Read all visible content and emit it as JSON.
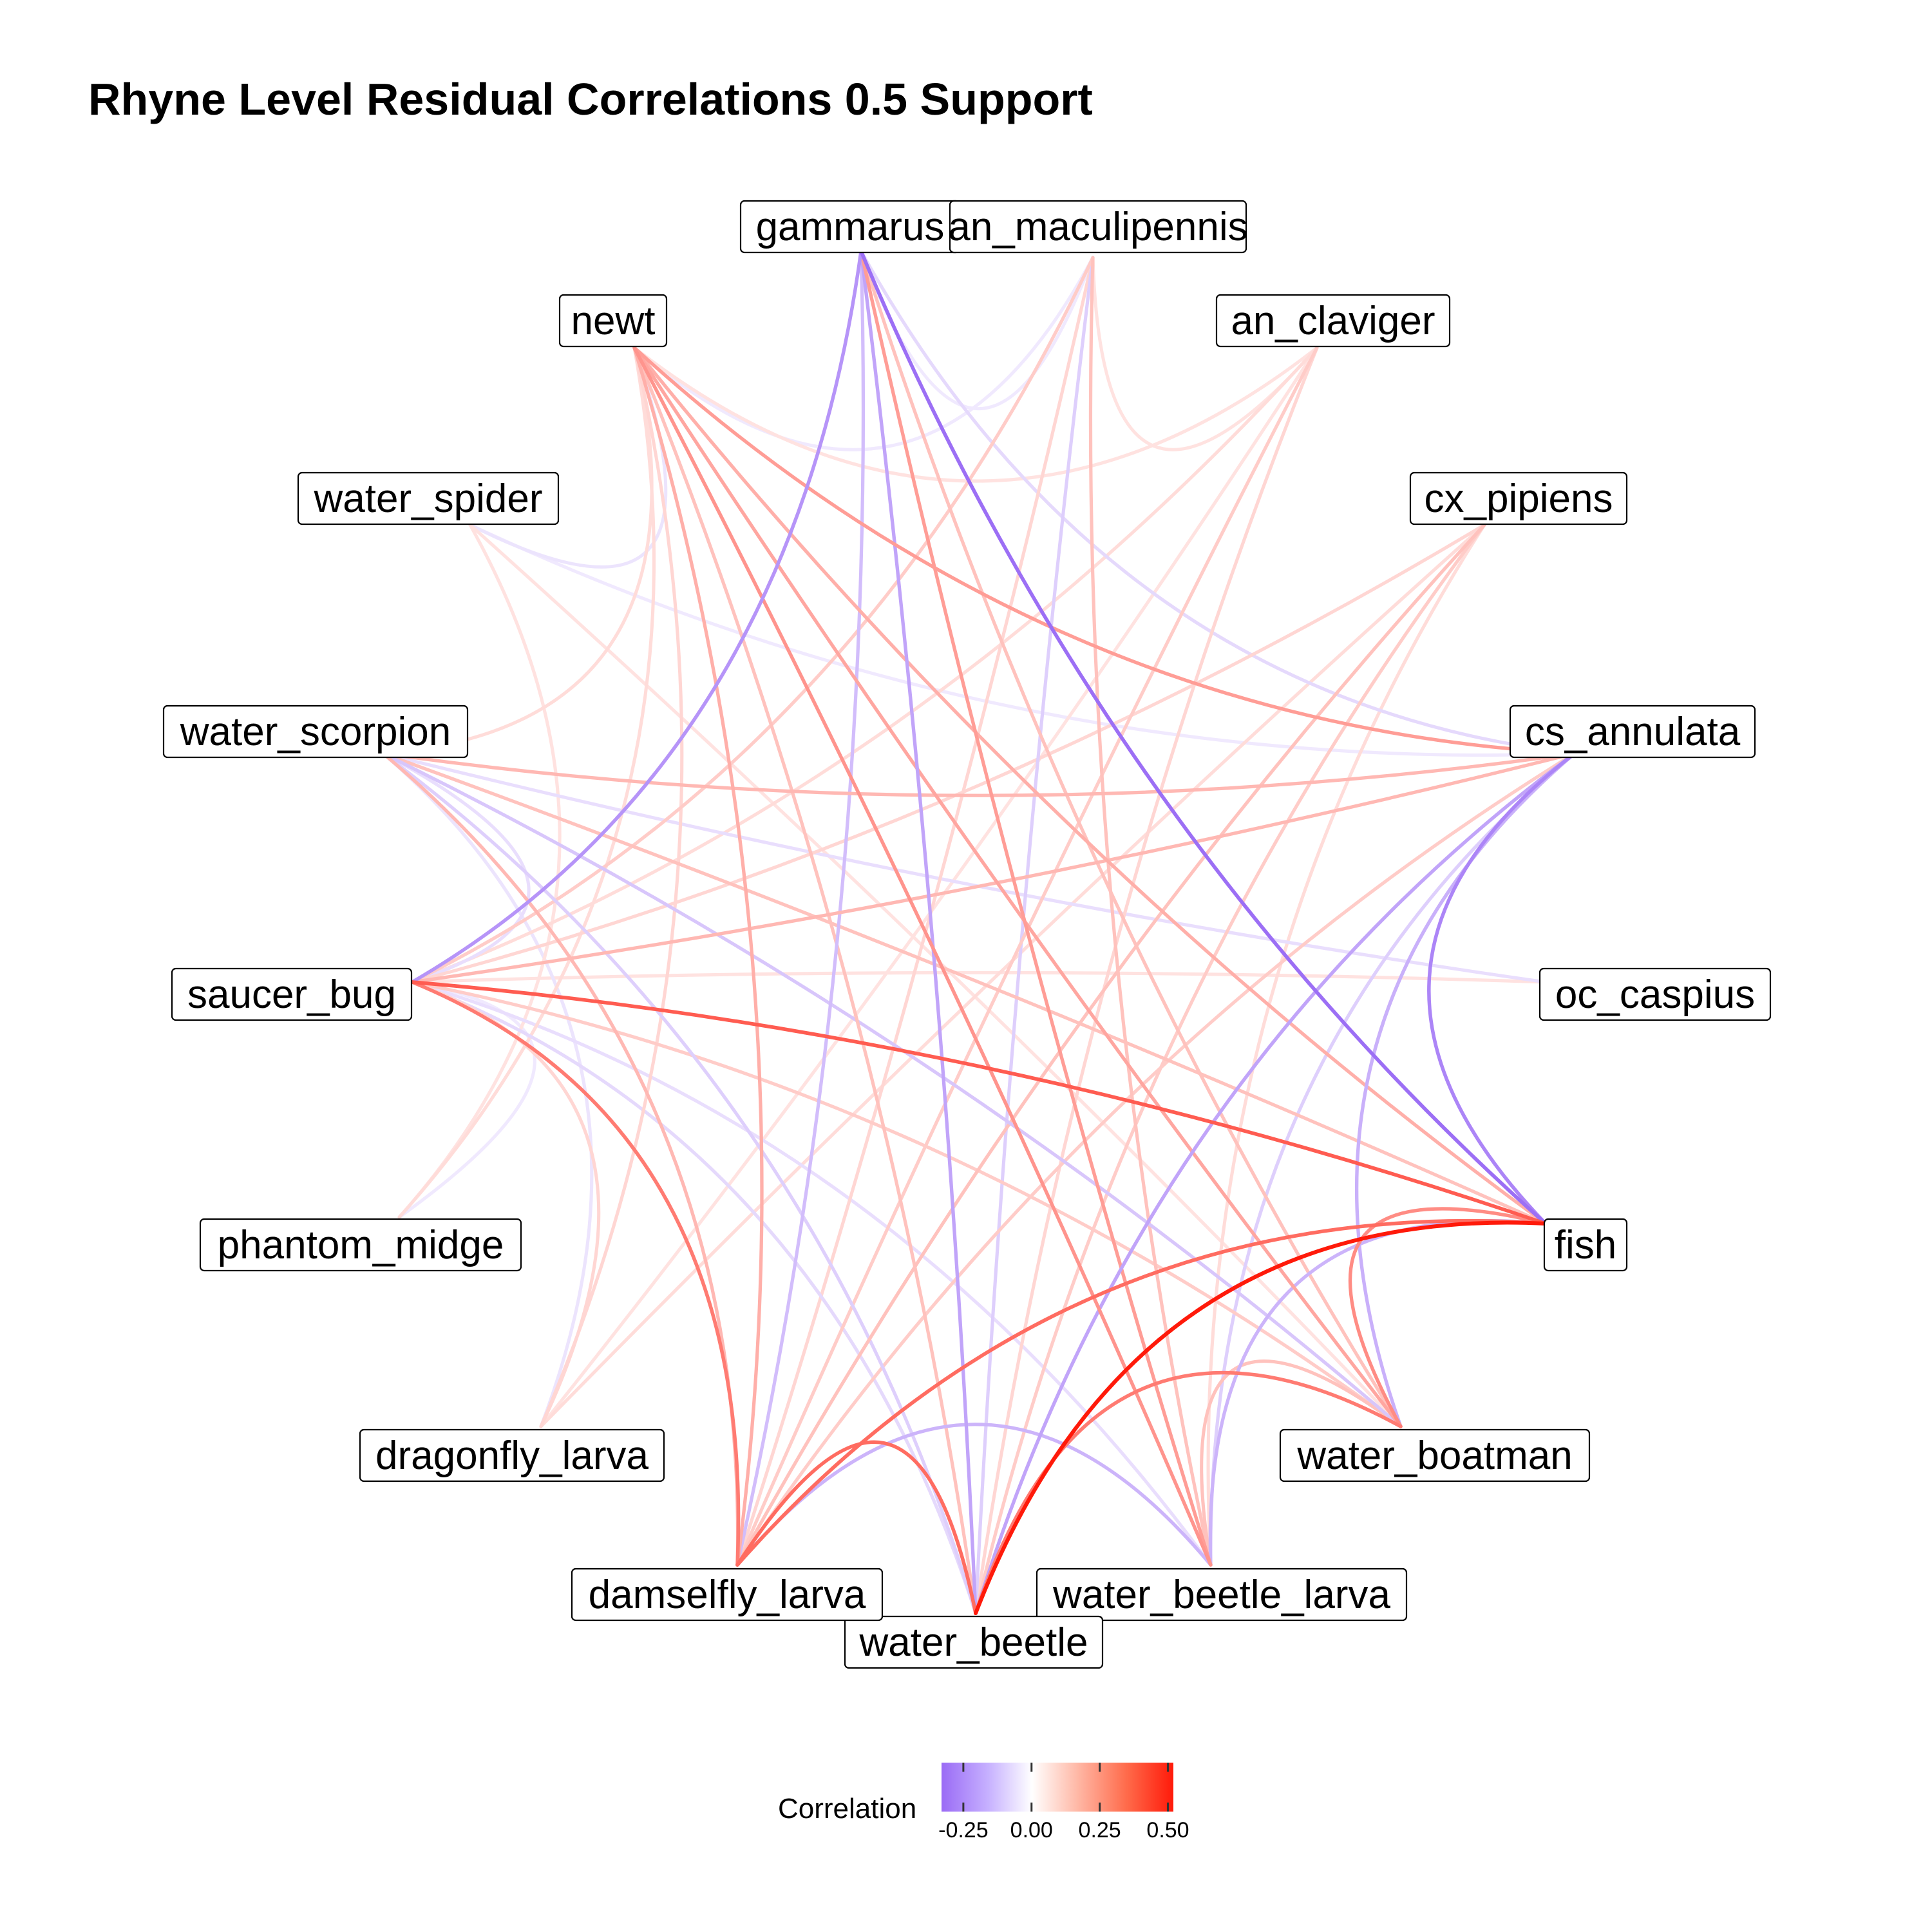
{
  "chart_data": {
    "type": "network",
    "title": "Rhyne Level Residual Correlations 0.5 Support",
    "legend": {
      "title": "Correlation",
      "ticks": [
        {
          "value": -0.25,
          "label": "-0.25"
        },
        {
          "value": 0.0,
          "label": "0.00"
        },
        {
          "value": 0.25,
          "label": "0.25"
        },
        {
          "value": 0.5,
          "label": "0.50"
        }
      ],
      "range": [
        -0.33,
        0.52
      ],
      "placement": "bottom",
      "colors": {
        "negative": "#9A6BF5",
        "zero": "#FFFFFF",
        "positive": "#FF1A0A"
      }
    },
    "nodes": [
      "gammarus",
      "an_maculipennis",
      "an_claviger",
      "cx_pipiens",
      "cs_annulata",
      "oc_caspius",
      "fish",
      "water_boatman",
      "water_beetle_larva",
      "water_beetle",
      "damselfly_larva",
      "dragonfly_larva",
      "phantom_midge",
      "saucer_bug",
      "water_scorpion",
      "water_spider",
      "newt"
    ],
    "edges": [
      {
        "source": "gammarus",
        "target": "fish",
        "value": -0.32
      },
      {
        "source": "gammarus",
        "target": "saucer_bug",
        "value": -0.22
      },
      {
        "source": "gammarus",
        "target": "water_beetle",
        "value": -0.18
      },
      {
        "source": "gammarus",
        "target": "damselfly_larva",
        "value": -0.12
      },
      {
        "source": "gammarus",
        "target": "water_beetle_larva",
        "value": 0.18
      },
      {
        "source": "gammarus",
        "target": "cs_annulata",
        "value": -0.06
      },
      {
        "source": "gammarus",
        "target": "water_boatman",
        "value": 0.1
      },
      {
        "source": "gammarus",
        "target": "an_maculipennis",
        "value": -0.03
      },
      {
        "source": "an_maculipennis",
        "target": "water_beetle",
        "value": -0.08
      },
      {
        "source": "an_maculipennis",
        "target": "water_beetle_larva",
        "value": 0.1
      },
      {
        "source": "an_maculipennis",
        "target": "saucer_bug",
        "value": 0.08
      },
      {
        "source": "an_maculipennis",
        "target": "newt",
        "value": -0.03
      },
      {
        "source": "an_maculipennis",
        "target": "damselfly_larva",
        "value": 0.06
      },
      {
        "source": "an_maculipennis",
        "target": "an_claviger",
        "value": 0.04
      },
      {
        "source": "an_claviger",
        "target": "damselfly_larva",
        "value": 0.08
      },
      {
        "source": "an_claviger",
        "target": "water_beetle",
        "value": 0.06
      },
      {
        "source": "an_claviger",
        "target": "saucer_bug",
        "value": 0.05
      },
      {
        "source": "an_claviger",
        "target": "dragonfly_larva",
        "value": 0.04
      },
      {
        "source": "an_claviger",
        "target": "newt",
        "value": 0.04
      },
      {
        "source": "cx_pipiens",
        "target": "damselfly_larva",
        "value": 0.1
      },
      {
        "source": "cx_pipiens",
        "target": "water_beetle",
        "value": 0.08
      },
      {
        "source": "cx_pipiens",
        "target": "saucer_bug",
        "value": 0.06
      },
      {
        "source": "cx_pipiens",
        "target": "water_beetle_larva",
        "value": 0.05
      },
      {
        "source": "cx_pipiens",
        "target": "dragonfly_larva",
        "value": 0.05
      },
      {
        "source": "cs_annulata",
        "target": "fish",
        "value": -0.26
      },
      {
        "source": "cs_annulata",
        "target": "water_beetle",
        "value": -0.18
      },
      {
        "source": "cs_annulata",
        "target": "saucer_bug",
        "value": 0.12
      },
      {
        "source": "cs_annulata",
        "target": "newt",
        "value": 0.18
      },
      {
        "source": "cs_annulata",
        "target": "water_scorpion",
        "value": 0.12
      },
      {
        "source": "cs_annulata",
        "target": "water_boatman",
        "value": -0.15
      },
      {
        "source": "cs_annulata",
        "target": "damselfly_larva",
        "value": 0.08
      },
      {
        "source": "cs_annulata",
        "target": "water_beetle_larva",
        "value": -0.08
      },
      {
        "source": "oc_caspius",
        "target": "water_scorpion",
        "value": -0.05
      },
      {
        "source": "oc_caspius",
        "target": "saucer_bug",
        "value": 0.04
      },
      {
        "source": "fish",
        "target": "saucer_bug",
        "value": 0.34
      },
      {
        "source": "fish",
        "target": "water_beetle",
        "value": 0.52
      },
      {
        "source": "fish",
        "target": "damselfly_larva",
        "value": 0.3
      },
      {
        "source": "fish",
        "target": "water_boatman",
        "value": 0.22
      },
      {
        "source": "fish",
        "target": "water_beetle_larva",
        "value": -0.14
      },
      {
        "source": "fish",
        "target": "newt",
        "value": 0.14
      },
      {
        "source": "fish",
        "target": "water_scorpion",
        "value": 0.1
      },
      {
        "source": "water_boatman",
        "target": "water_beetle",
        "value": 0.26
      },
      {
        "source": "water_boatman",
        "target": "water_beetle_larva",
        "value": 0.1
      },
      {
        "source": "water_boatman",
        "target": "newt",
        "value": 0.16
      },
      {
        "source": "water_boatman",
        "target": "saucer_bug",
        "value": 0.08
      },
      {
        "source": "water_boatman",
        "target": "water_scorpion",
        "value": -0.1
      },
      {
        "source": "water_beetle_larva",
        "target": "damselfly_larva",
        "value": -0.14
      },
      {
        "source": "water_beetle_larva",
        "target": "newt",
        "value": 0.2
      },
      {
        "source": "water_beetle_larva",
        "target": "saucer_bug",
        "value": -0.05
      },
      {
        "source": "water_beetle",
        "target": "damselfly_larva",
        "value": 0.3
      },
      {
        "source": "water_beetle",
        "target": "saucer_bug",
        "value": -0.06
      },
      {
        "source": "water_beetle",
        "target": "water_scorpion",
        "value": -0.08
      },
      {
        "source": "water_beetle",
        "target": "newt",
        "value": 0.1
      },
      {
        "source": "damselfly_larva",
        "target": "saucer_bug",
        "value": 0.26
      },
      {
        "source": "damselfly_larva",
        "target": "water_scorpion",
        "value": 0.12
      },
      {
        "source": "damselfly_larva",
        "target": "newt",
        "value": 0.14
      },
      {
        "source": "dragonfly_larva",
        "target": "saucer_bug",
        "value": 0.06
      },
      {
        "source": "dragonfly_larva",
        "target": "newt",
        "value": 0.06
      },
      {
        "source": "dragonfly_larva",
        "target": "water_scorpion",
        "value": -0.04
      },
      {
        "source": "phantom_midge",
        "target": "water_spider",
        "value": 0.04
      },
      {
        "source": "phantom_midge",
        "target": "newt",
        "value": 0.05
      },
      {
        "source": "phantom_midge",
        "target": "saucer_bug",
        "value": -0.03
      },
      {
        "source": "saucer_bug",
        "target": "water_scorpion",
        "value": -0.05
      },
      {
        "source": "water_scorpion",
        "target": "newt",
        "value": 0.05
      },
      {
        "source": "water_spider",
        "target": "newt",
        "value": -0.04
      },
      {
        "source": "water_spider",
        "target": "water_boatman",
        "value": 0.04
      },
      {
        "source": "water_spider",
        "target": "cs_annulata",
        "value": -0.03
      }
    ]
  }
}
